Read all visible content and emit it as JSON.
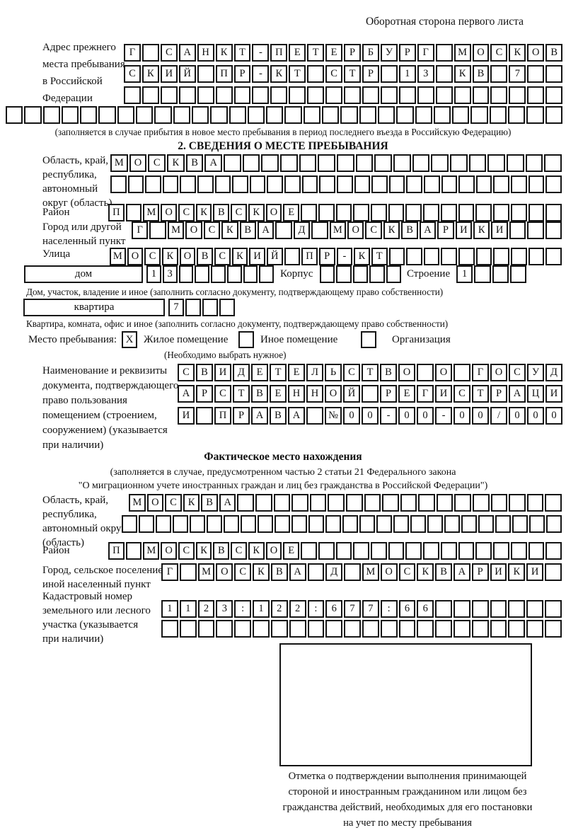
{
  "page_header": "Оборотная сторона первого листа",
  "prev_address": {
    "label": "Адрес прежнего\nместа пребывания\nв Российской\nФедерации",
    "rows": [
      {
        "text": "Г САНКТ-ПЕТЕРБУРГ МОСКОВ",
        "count": 24
      },
      {
        "text": "СКИЙ ПР-КТ СТР 13 КВ 7",
        "count": 24
      },
      {
        "text": "",
        "count": 24
      },
      {
        "text": "",
        "count": 30
      }
    ],
    "note": "(заполняется в случае прибытия в новое место пребывания в период последнего въезда в Российскую Федерацию)"
  },
  "section2": {
    "title": "2. СВЕДЕНИЯ О МЕСТЕ ПРЕБЫВАНИЯ",
    "region": {
      "label": "Область, край,\nреспублика,\nавтономный\nокруг (область)",
      "rows": [
        {
          "text": "МОСКВА",
          "count": 24
        },
        {
          "text": "",
          "count": 26
        }
      ]
    },
    "district": {
      "label": "Район",
      "row": {
        "text": "П МОСКВСКОЕ",
        "count": 26
      }
    },
    "city": {
      "label": "Город или другой\nнаселенный пункт",
      "row": {
        "text": "Г МОСКВА Д МОСКВАРИКИ",
        "count": 24
      }
    },
    "street": {
      "label": "Улица",
      "row": {
        "text": "МОСКОВСКИЙ ПР-КТ",
        "count": 26
      }
    },
    "house": {
      "box_label": "дом",
      "cells": {
        "text": "13",
        "count": 8
      },
      "korpus_label": "Корпус",
      "korpus_cells": {
        "text": "",
        "count": 5
      },
      "stroenie_label": "Строение",
      "stroenie_cells": {
        "text": "1",
        "count": 4
      },
      "note": "Дом, участок, владение и иное (заполнить согласно документу, подтверждающему право собственности)"
    },
    "apartment": {
      "box_label": "квартира",
      "cells": {
        "text": "7",
        "count": 4
      },
      "note": "Квартира, комната, офис и иное (заполнить согласно документу, подтверждающему право собственности)"
    },
    "stay_type": {
      "label": "Место пребывания:",
      "checked_mark": "X",
      "options": [
        "Жилое помещение",
        "Иное помещение",
        "Организация"
      ],
      "note": "(Необходимо выбрать нужное)"
    },
    "document": {
      "label": "Наименование и реквизиты\nдокумента, подтверждающего\nправо пользования\nпомещением (строением,\nсооружением) (указывается\nпри наличии)",
      "rows": [
        {
          "text": "СВИДЕТЕЛЬСТВО О ГОСУД",
          "count": 21
        },
        {
          "text": "АРСТВЕННОЙ РЕГИСТРАЦИ",
          "count": 21
        },
        {
          "text": "И ПРАВА №00-00-00/000",
          "count": 21
        }
      ]
    }
  },
  "actual_location": {
    "title": "Фактическое место нахождения",
    "note_line1": "(заполняется в случае, предусмотренном частью 2 статьи 21 Федерального закона",
    "note_line2": "\"О миграционном учете иностранных граждан и лиц без гражданства в Российской Федерации\")",
    "region": {
      "label": "Область, край,\nреспублика,\nавтономный округ\n(область)",
      "rows": [
        {
          "text": "МОСКВА",
          "count": 24
        },
        {
          "text": "",
          "count": 26
        }
      ]
    },
    "district": {
      "label": "Район",
      "row": {
        "text": "П МОСКВСКОЕ",
        "count": 26
      }
    },
    "city": {
      "label": "Город, сельское поселение,\nиной населенный пункт",
      "row": {
        "text": "Г МОСКВА Д МОСКВАРИКИ",
        "count": 22
      }
    },
    "cadastral": {
      "label": "Кадастровый номер\nземельного или лесного\nучастка (указывается\nпри наличии)",
      "rows": [
        {
          "text": "1123:122:677:66",
          "count": 22
        },
        {
          "text": "",
          "count": 22
        }
      ]
    },
    "stamp_caption": "Отметка о подтверждении выполнения принимающей стороной и иностранным гражданином или лицом без гражданства действий, необходимых для его постановки на учет по месту пребывания"
  }
}
